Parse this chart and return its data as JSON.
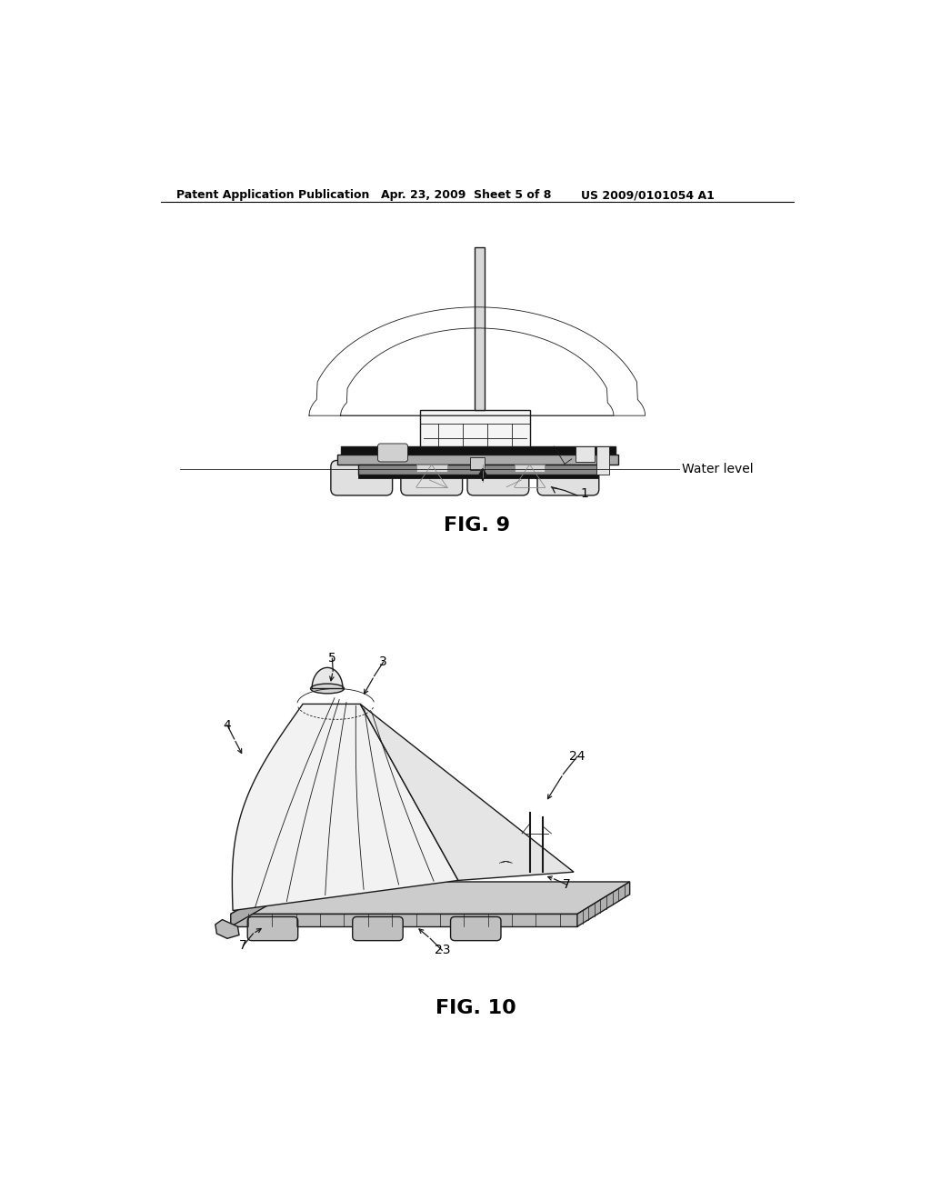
{
  "bg_color": "#ffffff",
  "header_left": "Patent Application Publication",
  "header_mid": "Apr. 23, 2009  Sheet 5 of 8",
  "header_right": "US 2009/0101054 A1",
  "fig9_label": "FIG. 9",
  "fig10_label": "FIG. 10",
  "water_level_label": "Water level",
  "lc": "#1a1a1a",
  "lc_gray": "#888888",
  "lw": 1.0,
  "lw_thin": 0.6,
  "lw_thick": 2.0,
  "fs_label": 10,
  "fs_fig": 16,
  "fs_header": 9
}
